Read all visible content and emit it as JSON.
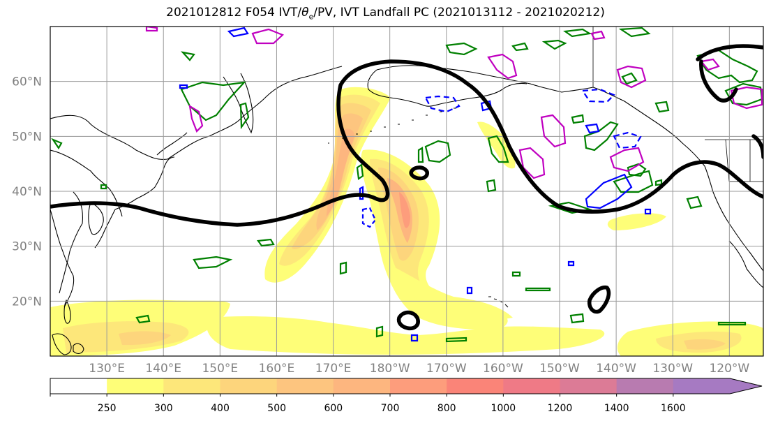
{
  "title": {
    "prefix": "2021012812 F054 IVT/",
    "theta": "θ",
    "theta_sub": "e",
    "suffix": "/PV, IVT Landfall PC (2021013112 - 2021020212)"
  },
  "axes": {
    "lat_labels": [
      "60°N",
      "50°N",
      "40°N",
      "30°N",
      "20°N"
    ],
    "lat_values": [
      60,
      50,
      40,
      30,
      20
    ],
    "lon_labels": [
      "130°E",
      "140°E",
      "150°E",
      "160°E",
      "170°E",
      "180°W",
      "170°W",
      "160°W",
      "150°W",
      "140°W",
      "130°W",
      "120°W"
    ],
    "lon_values": [
      130,
      140,
      150,
      160,
      170,
      180,
      190,
      200,
      210,
      220,
      230,
      240
    ],
    "lon_range": [
      120,
      246
    ],
    "lat_range": [
      10,
      70
    ],
    "grid": true
  },
  "colorbar": {
    "levels": [
      "250",
      "300",
      "400",
      "500",
      "600",
      "700",
      "800",
      "1000",
      "1200",
      "1400",
      "1600"
    ],
    "colors": [
      "#ffffff",
      "#fefe78",
      "#fde77a",
      "#fdd57c",
      "#fdc57f",
      "#fdb67f",
      "#fd9d7c",
      "#fa8478",
      "#ef7a86",
      "#dc7b96",
      "#b87bb0",
      "#a67ac2"
    ],
    "extend": "max"
  },
  "colors": {
    "pv_contour": "#008000",
    "theta_warm": "#c000c0",
    "theta_cold": "#0000ff",
    "landfall_pc": "#000000",
    "coastline": "#000000"
  }
}
